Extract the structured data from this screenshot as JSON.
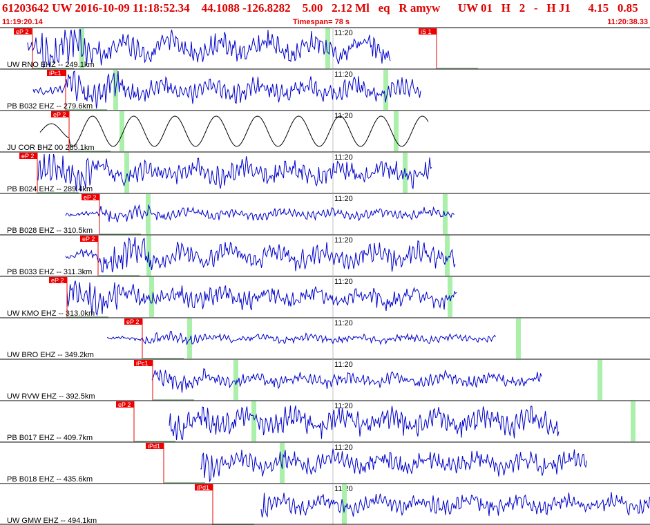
{
  "header": {
    "title": "61203642 UW 2016-10-09 11:18:52.34    44.1088 -126.8282    5.00   2.12 Ml   eq   R amyw      UW 01   H   2   -   H J1      4.15   0.85",
    "start_time": "11:19:20.14",
    "timespan": "Timespan=  78 s",
    "end_time": "11:20:38.33"
  },
  "colors": {
    "header_text": "#e00000",
    "trace": "#0000cc",
    "trace_alt": "#000000",
    "pick_box": "#ee0000",
    "s_marker": "#aaf0aa",
    "tick": "#c0c0c0"
  },
  "minute_label": "11:20",
  "traces": [
    {
      "label": "UW RNO EHZ -- 249.1km",
      "picks": [
        {
          "text": "eP 2"
        },
        {
          "text": "iS 1"
        }
      ]
    },
    {
      "label": "PB B032 EHZ -- 279.6km",
      "picks": [
        {
          "text": "iPc1"
        }
      ]
    },
    {
      "label": "JU COR BHZ 00 285.1km",
      "picks": [
        {
          "text": "eP 2"
        }
      ]
    },
    {
      "label": "PB B024 EHZ -- 289.4km",
      "picks": [
        {
          "text": "eP 2"
        }
      ]
    },
    {
      "label": "PB B028 EHZ -- 310.5km",
      "picks": [
        {
          "text": "eP 2"
        }
      ]
    },
    {
      "label": "PB B033 EHZ -- 311.3km",
      "picks": [
        {
          "text": "eP 2"
        }
      ]
    },
    {
      "label": "UW KMO EHZ -- 313.0km",
      "picks": [
        {
          "text": "eP 2"
        }
      ]
    },
    {
      "label": "UW BRO EHZ -- 349.2km",
      "picks": [
        {
          "text": "eP 2"
        }
      ]
    },
    {
      "label": "UW RVW EHZ -- 392.5km",
      "picks": [
        {
          "text": "iPc1"
        }
      ]
    },
    {
      "label": "PB B017 EHZ -- 409.7km",
      "picks": [
        {
          "text": "eP 2"
        }
      ]
    },
    {
      "label": "PB B018 EHZ -- 435.6km",
      "picks": [
        {
          "text": "iPd1"
        }
      ]
    },
    {
      "label": "UW GMW EHZ -- 494.1km",
      "picks": [
        {
          "text": "iPd1"
        }
      ]
    }
  ]
}
